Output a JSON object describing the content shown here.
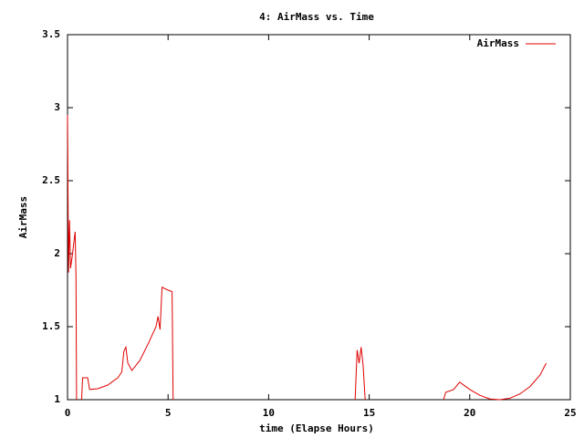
{
  "chart_data": {
    "type": "line",
    "title": "4: AirMass vs. Time",
    "x_label": "time (Elapse Hours)",
    "y_label": "AirMass",
    "x": [
      0.0,
      0.05,
      0.1,
      0.15,
      0.25,
      0.35,
      0.38,
      0.42,
      0.45,
      0.55,
      0.7,
      0.75,
      1.0,
      1.1,
      1.5,
      2.0,
      2.5,
      2.7,
      2.8,
      2.9,
      3.0,
      3.2,
      3.6,
      4.0,
      4.4,
      4.5,
      4.6,
      4.7,
      5.0,
      5.2,
      5.25,
      9.5,
      14.3,
      14.4,
      14.5,
      14.6,
      14.7,
      14.8,
      17.0,
      18.7,
      18.8,
      19.2,
      19.5,
      20.0,
      20.5,
      21.0,
      21.5,
      22.0,
      22.5,
      23.0,
      23.5,
      23.8
    ],
    "series": [
      {
        "name": "AirMass",
        "color": "#e00000",
        "values": [
          2.95,
          1.87,
          2.23,
          1.9,
          2.0,
          2.12,
          2.15,
          1.85,
          1.0,
          null,
          1.0,
          1.15,
          1.15,
          1.07,
          1.075,
          1.1,
          1.15,
          1.19,
          1.33,
          1.36,
          1.25,
          1.2,
          1.27,
          1.38,
          1.5,
          1.57,
          1.48,
          1.77,
          1.75,
          1.74,
          1.0,
          null,
          1.0,
          1.34,
          1.25,
          1.36,
          1.23,
          1.0,
          null,
          1.0,
          1.05,
          1.07,
          1.12,
          1.07,
          1.03,
          1.005,
          1.0,
          1.01,
          1.04,
          1.09,
          1.17,
          1.25
        ]
      }
    ],
    "xlim": [
      0,
      25
    ],
    "xticks": [
      0,
      5,
      10,
      15,
      20,
      25
    ],
    "ylim": [
      1,
      3.5
    ],
    "yticks": [
      1,
      1.5,
      2,
      2.5,
      3,
      3.5
    ],
    "grid": false,
    "legend": "top-right"
  }
}
